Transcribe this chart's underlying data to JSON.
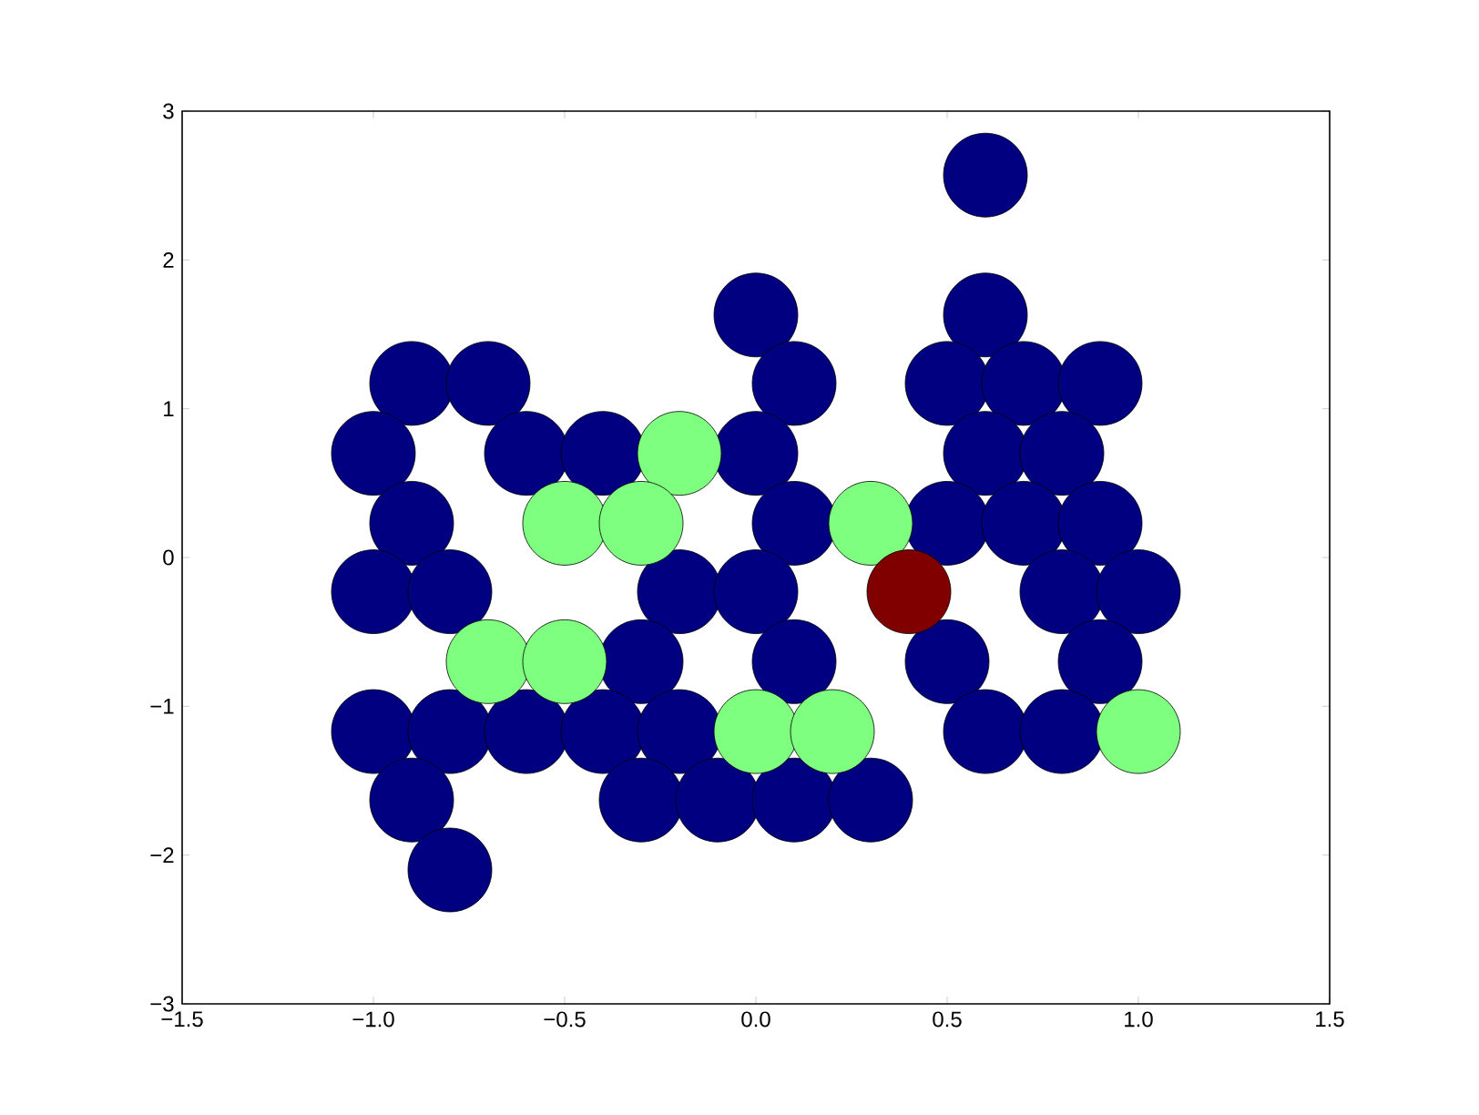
{
  "chart_data": {
    "type": "scatter",
    "grid": false,
    "xlim": [
      -1.5,
      1.5
    ],
    "ylim": [
      -3,
      3
    ],
    "xticks": [
      {
        "value": -1.5,
        "label": "−1.5"
      },
      {
        "value": -1.0,
        "label": "−1.0"
      },
      {
        "value": -0.5,
        "label": "−0.5"
      },
      {
        "value": 0.0,
        "label": "0.0"
      },
      {
        "value": 0.5,
        "label": "0.5"
      },
      {
        "value": 1.0,
        "label": "1.0"
      },
      {
        "value": 1.5,
        "label": "1.5"
      }
    ],
    "yticks": [
      {
        "value": -3,
        "label": "−3"
      },
      {
        "value": -2,
        "label": "−2"
      },
      {
        "value": -1,
        "label": "−1"
      },
      0,
      1,
      2,
      3
    ],
    "series": [
      {
        "color": "#000080",
        "x": [
          0.6,
          0.0,
          0.6,
          -0.9,
          -0.7,
          0.1,
          0.5,
          0.7,
          0.9,
          -1.0,
          -0.6,
          -0.4,
          0.0,
          0.6,
          0.8,
          -0.9,
          0.1,
          0.5,
          0.7,
          0.9,
          -1.0,
          -0.8,
          -0.2,
          0.0,
          0.8,
          1.0,
          -0.3,
          0.1,
          0.5,
          0.9,
          -1.0,
          -0.8,
          -0.6,
          -0.4,
          -0.2,
          0.6,
          0.8,
          -0.9,
          -0.3,
          -0.1,
          0.1,
          0.3,
          -0.8
        ],
        "values": [
          2.57,
          1.63,
          1.63,
          1.17,
          1.17,
          1.17,
          1.17,
          1.17,
          1.17,
          0.7,
          0.7,
          0.7,
          0.7,
          0.7,
          0.7,
          0.23,
          0.23,
          0.23,
          0.23,
          0.23,
          -0.23,
          -0.23,
          -0.23,
          -0.23,
          -0.23,
          -0.23,
          -0.7,
          -0.7,
          -0.7,
          -0.7,
          -1.17,
          -1.17,
          -1.17,
          -1.17,
          -1.17,
          -1.17,
          -1.17,
          -1.63,
          -1.63,
          -1.63,
          -1.63,
          -1.63,
          -2.1
        ]
      },
      {
        "color": "#7fff7f",
        "x": [
          -0.2,
          -0.5,
          -0.3,
          0.3,
          -0.7,
          -0.5,
          0.0,
          0.2,
          1.0
        ],
        "values": [
          0.7,
          0.23,
          0.23,
          0.23,
          -0.7,
          -0.7,
          -1.17,
          -1.17,
          -1.17
        ]
      },
      {
        "color": "#800000",
        "x": [
          0.4
        ],
        "values": [
          -0.23
        ]
      }
    ]
  }
}
